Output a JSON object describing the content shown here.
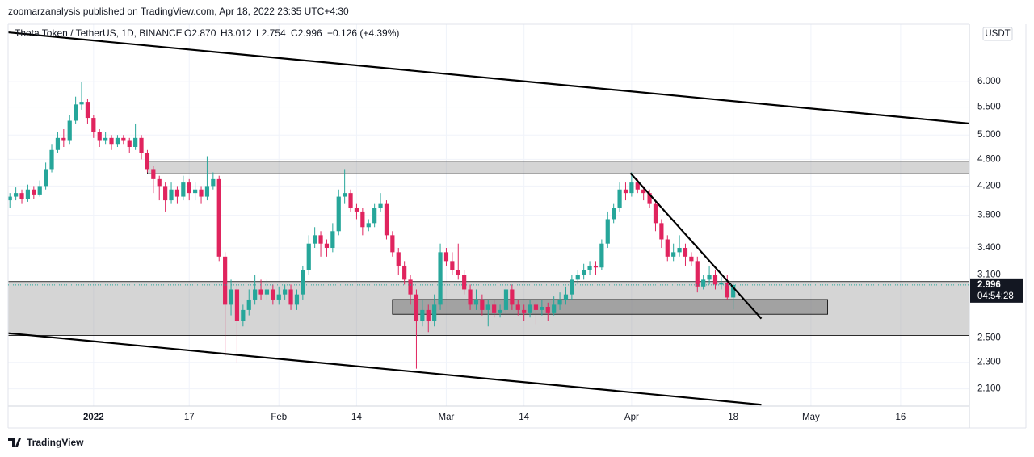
{
  "header": {
    "publisher": "zoomarzanalysis published on TradingView.com, Apr 18, 2022 23:35 UTC+4:30",
    "brand": "TradingView"
  },
  "chart_data": {
    "type": "candlestick",
    "legend": {
      "symbol": "Theta Token / TetherUS, 1D, BINANCE",
      "open": "O2.870",
      "high": "H3.012",
      "low": "L2.754",
      "close": "C2.996",
      "change": "+0.126 (+4.39%)"
    },
    "currency": "USDT",
    "last_price_label": "2.996",
    "countdown": "04:54:28",
    "log_scale": true,
    "up_color": "#26a69a",
    "down_color": "#e0245e",
    "open": [
      4.0,
      4.05,
      4.1,
      4.02,
      4.15,
      4.08,
      4.2,
      4.45,
      4.75,
      4.95,
      4.9,
      5.25,
      5.55,
      5.6,
      5.3,
      5.05,
      4.9,
      4.95,
      4.85,
      4.95,
      4.9,
      4.8,
      4.95,
      4.7,
      4.45,
      4.3,
      4.2,
      4.0,
      4.15,
      4.05,
      4.25,
      4.1,
      4.15,
      4.05,
      4.2,
      4.3,
      3.3,
      2.8,
      2.95,
      2.65,
      2.75,
      2.85,
      2.95,
      2.9,
      2.95,
      2.85,
      2.9,
      2.95,
      2.8,
      2.9,
      3.15,
      3.45,
      3.55,
      3.45,
      3.4,
      3.6,
      4.05,
      4.1,
      3.9,
      3.85,
      3.65,
      3.7,
      3.9,
      3.95,
      3.55,
      3.35,
      3.2,
      3.05,
      2.9,
      2.65,
      2.75,
      2.65,
      2.8,
      3.35,
      3.25,
      3.15,
      3.1,
      2.95,
      2.8,
      2.85,
      2.75,
      2.8,
      2.72,
      2.75,
      2.95,
      2.8,
      2.75,
      2.72,
      2.8,
      2.75,
      2.78,
      2.72,
      2.8,
      2.85,
      2.9,
      3.05,
      3.1,
      3.15,
      3.2,
      3.18,
      3.45,
      3.75,
      3.9,
      4.15,
      4.1,
      4.25,
      4.15,
      4.1,
      3.95,
      3.7,
      3.5,
      3.3,
      3.35,
      3.4,
      3.3,
      3.25,
      2.98,
      3.05,
      3.1,
      3.0,
      3.02,
      2.87
    ],
    "high": [
      4.1,
      4.18,
      4.15,
      4.22,
      4.2,
      4.28,
      4.55,
      4.85,
      5.05,
      5.1,
      5.35,
      5.7,
      6.0,
      5.65,
      5.35,
      5.1,
      5.05,
      5.0,
      5.0,
      5.0,
      4.95,
      5.2,
      5.0,
      4.75,
      4.5,
      4.35,
      4.25,
      4.25,
      4.2,
      4.35,
      4.3,
      4.25,
      4.2,
      4.65,
      4.4,
      4.35,
      3.35,
      3.05,
      3.0,
      2.8,
      2.95,
      3.1,
      3.05,
      3.05,
      3.0,
      2.98,
      3.0,
      3.0,
      2.95,
      3.2,
      3.55,
      3.65,
      3.6,
      3.5,
      3.7,
      4.15,
      4.45,
      4.15,
      3.95,
      3.9,
      3.75,
      3.95,
      4.1,
      4.0,
      3.6,
      3.4,
      3.25,
      3.1,
      2.95,
      2.85,
      2.8,
      2.9,
      3.45,
      3.4,
      3.35,
      3.45,
      3.15,
      3.0,
      2.95,
      2.9,
      2.85,
      2.85,
      2.8,
      3.0,
      3.0,
      2.85,
      2.8,
      2.85,
      2.82,
      2.85,
      2.82,
      2.88,
      2.92,
      2.98,
      3.1,
      3.15,
      3.22,
      3.25,
      3.25,
      3.5,
      3.85,
      3.95,
      4.25,
      4.25,
      4.4,
      4.3,
      4.2,
      4.15,
      4.0,
      3.75,
      3.55,
      3.45,
      3.55,
      3.45,
      3.35,
      3.3,
      3.1,
      3.2,
      3.15,
      3.08,
      3.1,
      3.012
    ],
    "low": [
      3.9,
      4.0,
      3.95,
      3.98,
      4.02,
      4.05,
      4.15,
      4.4,
      4.7,
      4.8,
      4.85,
      5.2,
      5.45,
      5.2,
      4.95,
      4.8,
      4.85,
      4.75,
      4.8,
      4.85,
      4.7,
      4.75,
      4.6,
      4.4,
      4.1,
      4.0,
      3.85,
      3.95,
      3.95,
      4.0,
      4.0,
      4.0,
      3.95,
      4.0,
      4.15,
      3.25,
      2.35,
      2.7,
      2.3,
      2.6,
      2.7,
      2.8,
      2.85,
      2.85,
      2.8,
      2.8,
      2.85,
      2.75,
      2.75,
      2.85,
      3.1,
      3.4,
      3.3,
      3.3,
      3.35,
      3.55,
      3.95,
      3.85,
      3.75,
      3.55,
      3.6,
      3.65,
      3.85,
      3.5,
      3.3,
      3.1,
      3.0,
      2.8,
      2.25,
      2.6,
      2.55,
      2.6,
      2.75,
      3.2,
      3.1,
      3.05,
      2.9,
      2.75,
      2.75,
      2.7,
      2.6,
      2.68,
      2.68,
      2.7,
      2.75,
      2.7,
      2.65,
      2.68,
      2.62,
      2.7,
      2.65,
      2.7,
      2.75,
      2.8,
      2.85,
      3.0,
      3.05,
      3.1,
      3.1,
      3.15,
      3.4,
      3.7,
      3.85,
      4.0,
      4.05,
      4.1,
      4.0,
      3.9,
      3.6,
      3.4,
      3.25,
      3.25,
      3.3,
      3.2,
      3.2,
      2.92,
      2.95,
      3.0,
      2.95,
      2.95,
      2.85,
      2.754
    ],
    "close": [
      4.05,
      4.1,
      4.02,
      4.15,
      4.08,
      4.2,
      4.45,
      4.75,
      4.95,
      4.9,
      5.25,
      5.55,
      5.6,
      5.3,
      5.05,
      4.9,
      4.95,
      4.85,
      4.95,
      4.9,
      4.8,
      4.95,
      4.7,
      4.45,
      4.3,
      4.2,
      4.0,
      4.15,
      4.05,
      4.25,
      4.1,
      4.15,
      4.05,
      4.2,
      4.3,
      3.3,
      2.8,
      2.95,
      2.65,
      2.75,
      2.85,
      2.95,
      2.9,
      2.95,
      2.85,
      2.9,
      2.95,
      2.8,
      2.9,
      3.15,
      3.45,
      3.55,
      3.45,
      3.4,
      3.6,
      4.05,
      4.1,
      3.9,
      3.85,
      3.65,
      3.7,
      3.9,
      3.95,
      3.55,
      3.35,
      3.2,
      3.05,
      2.9,
      2.65,
      2.75,
      2.65,
      2.8,
      3.35,
      3.25,
      3.15,
      3.1,
      2.95,
      2.8,
      2.85,
      2.75,
      2.8,
      2.72,
      2.75,
      2.95,
      2.8,
      2.75,
      2.72,
      2.8,
      2.75,
      2.78,
      2.72,
      2.8,
      2.85,
      2.9,
      3.05,
      3.1,
      3.15,
      3.2,
      3.18,
      3.45,
      3.75,
      3.9,
      4.15,
      4.1,
      4.25,
      4.15,
      4.1,
      3.95,
      3.7,
      3.5,
      3.3,
      3.35,
      3.4,
      3.3,
      3.25,
      2.98,
      3.05,
      3.1,
      3.0,
      3.02,
      2.87,
      2.996
    ],
    "xlim": [
      -0.3,
      160.5
    ],
    "xticks": [
      {
        "value": 14,
        "label": "2022"
      },
      {
        "value": 30,
        "label": "17"
      },
      {
        "value": 45,
        "label": "Feb"
      },
      {
        "value": 58,
        "label": "14"
      },
      {
        "value": 73,
        "label": "Mar"
      },
      {
        "value": 86,
        "label": "14"
      },
      {
        "value": 104,
        "label": "Apr"
      },
      {
        "value": 121,
        "label": "18"
      },
      {
        "value": 134,
        "label": "May"
      },
      {
        "value": 149,
        "label": "16"
      }
    ],
    "ylim": [
      1.98,
      7.3
    ],
    "yticks": [
      {
        "value": 2.1,
        "label": "2.100"
      },
      {
        "value": 2.3,
        "label": "2.300"
      },
      {
        "value": 2.5,
        "label": "2.500"
      },
      {
        "value": 3.1,
        "label": "3.100"
      },
      {
        "value": 3.4,
        "label": "3.400"
      },
      {
        "value": 3.8,
        "label": "3.800"
      },
      {
        "value": 4.2,
        "label": "4.200"
      },
      {
        "value": 4.6,
        "label": "4.600"
      },
      {
        "value": 5,
        "label": "5.000"
      },
      {
        "value": 5.5,
        "label": "5.500"
      },
      {
        "value": 6,
        "label": "6.000"
      }
    ],
    "trend_lines": [
      {
        "x": [
          -0.3,
          160.5
        ],
        "y": [
          7.1,
          5.2
        ],
        "color": "#000000"
      },
      {
        "x": [
          -0.3,
          125.7
        ],
        "y": [
          2.54,
          1.99
        ],
        "color": "#000000"
      },
      {
        "x": [
          103.8,
          125.7
        ],
        "y": [
          4.39,
          2.67
        ],
        "color": "#000000"
      }
    ],
    "zones": [
      {
        "x": [
          23,
          160.5
        ],
        "y": [
          4.57,
          4.38
        ]
      },
      {
        "x": [
          -0.3,
          160.5
        ],
        "y": [
          3.03,
          2.52
        ]
      },
      {
        "x": [
          64,
          136.8
        ],
        "y": [
          2.85,
          2.71
        ]
      }
    ]
  }
}
